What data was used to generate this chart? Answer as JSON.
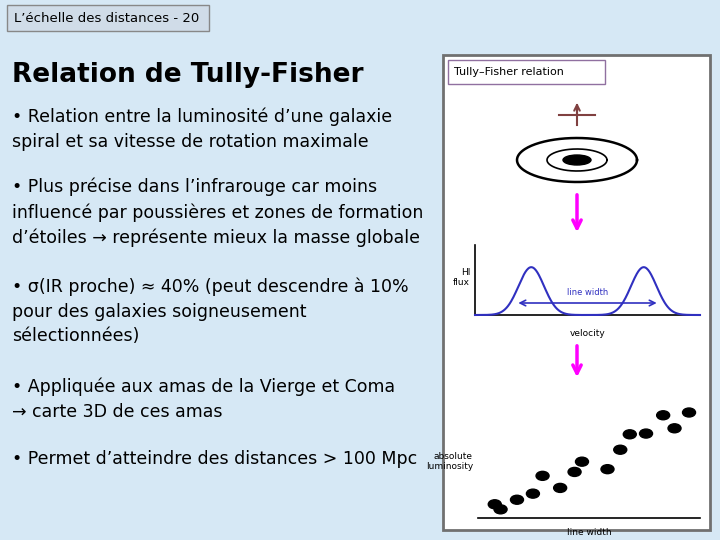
{
  "background_color": "#d6e8f5",
  "header_text": "L’échelle des distances - 20",
  "header_bg": "#d0dce8",
  "header_border": "#888888",
  "title": "Relation de Tully-Fisher",
  "bullet1": "• Relation entre la luminosité d’une galaxie\nspiral et sa vitesse de rotation maximale",
  "bullet2": "• Plus précise dans l’infrarouge car moins\ninfluencé par poussières et zones de formation\nd’étoiles → représente mieux la masse globale",
  "bullet3": "• σ(IR proche) ≈ 40% (peut descendre à 10%\npour des galaxies soigneusement\nsélectionnées)",
  "bullet4": "• Appliquée aux amas de la Vierge et Coma\n→ carte 3D de ces amas",
  "bullet5": "• Permet d’atteindre des distances > 100 Mpc",
  "tf_label": "Tully–Fisher relation",
  "hi_flux_label": "HI\nflux",
  "line_width_label": "line width",
  "velocity_label": "velocity",
  "abs_lum_label": "absolute\nluminosity",
  "lw_bottom_label": "line width",
  "text_color": "#000000",
  "title_fontsize": 19,
  "bullet_fontsize": 12.5,
  "header_fontsize": 9.5,
  "img_label_fontsize": 8,
  "img_small_fontsize": 6.5
}
